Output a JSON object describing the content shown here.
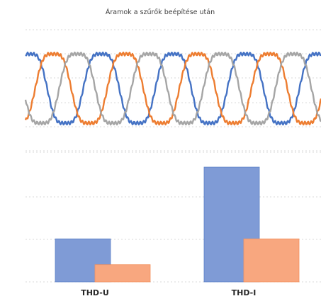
{
  "chart_data": [
    {
      "type": "line",
      "title": "Áramok a szűrők beépítése után",
      "xlabel": "",
      "ylabel": "",
      "grid": true,
      "legend": "none",
      "waveform": {
        "cycles": 4.1,
        "phase_offsets_deg": [
          0,
          120,
          240
        ]
      },
      "series": [
        {
          "values": [
            1.0,
            0.5,
            -0.5,
            -1.0,
            -0.5,
            0.5,
            1.0
          ],
          "color": "#4472c4"
        },
        {
          "values": [
            -0.5,
            -1.0,
            -0.5,
            0.5,
            1.0,
            0.5,
            -0.5
          ],
          "color": "#ed7d31"
        },
        {
          "values": [
            -0.5,
            0.5,
            1.0,
            0.5,
            -0.5,
            -1.0,
            -0.5
          ],
          "color": "#a5a5a5"
        }
      ]
    },
    {
      "type": "bar",
      "categories": [
        "THD-U",
        "THD-I"
      ],
      "grid": true,
      "legend": "none",
      "ylim": [
        0,
        4
      ],
      "series": [
        {
          "values": [
            1.5,
            4.0
          ],
          "color": "#7f9bd6"
        },
        {
          "values": [
            0.6,
            1.5
          ],
          "color": "#f8a77f"
        }
      ]
    }
  ]
}
